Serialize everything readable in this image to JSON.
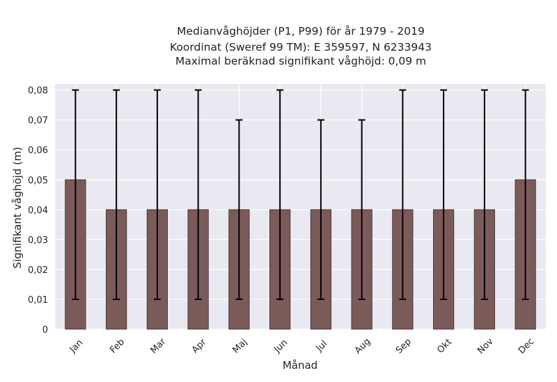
{
  "chart_data": {
    "type": "bar",
    "title_lines": [
      "Medianvåghöjder (P1, P99) för år 1979 - 2019",
      "Koordinat (Sweref 99 TM): E 359597, N 6233943",
      "Maximal beräknad signifikant våghöjd: 0,09 m"
    ],
    "xlabel": "Månad",
    "ylabel": "Signifikant våghöjd (m)",
    "categories": [
      "Jan",
      "Feb",
      "Mar",
      "Apr",
      "Maj",
      "Jun",
      "Jul",
      "Aug",
      "Sep",
      "Okt",
      "Nov",
      "Dec"
    ],
    "values": [
      0.05,
      0.04,
      0.04,
      0.04,
      0.04,
      0.04,
      0.04,
      0.04,
      0.04,
      0.04,
      0.04,
      0.05
    ],
    "error_low": [
      0.01,
      0.01,
      0.01,
      0.01,
      0.01,
      0.01,
      0.01,
      0.01,
      0.01,
      0.01,
      0.01,
      0.01
    ],
    "error_high": [
      0.08,
      0.08,
      0.08,
      0.08,
      0.07,
      0.08,
      0.07,
      0.07,
      0.08,
      0.08,
      0.08,
      0.08
    ],
    "ylim": [
      0,
      0.082
    ],
    "yticks": [
      0,
      0.01,
      0.02,
      0.03,
      0.04,
      0.05,
      0.06,
      0.07,
      0.08
    ],
    "ytick_labels": [
      "0",
      "0,01",
      "0,02",
      "0,03",
      "0,04",
      "0,05",
      "0,06",
      "0,07",
      "0,08"
    ],
    "grid": true,
    "colors": {
      "bar": "#7b5a5a",
      "bar_edge": "#3d2b2b",
      "error_bar": "#000000",
      "plot_bg": "#e9e9f1",
      "grid": "#ffffff"
    }
  }
}
